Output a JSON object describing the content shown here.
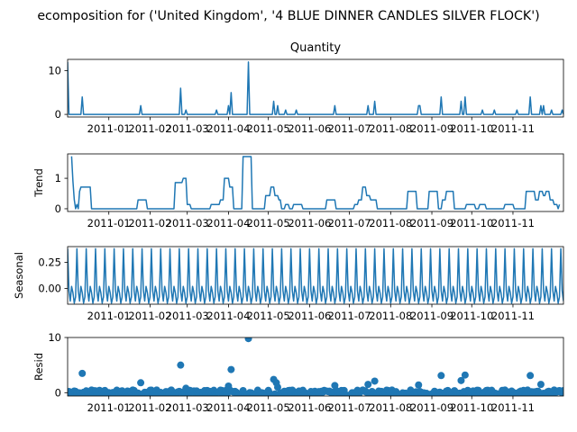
{
  "chart_data": {
    "type": "line",
    "suptitle": "ecomposition for ('United Kingdom', '4 BLUE DINNER CANDLES SILVER FLOCK')",
    "line_color": "#1f77b4",
    "x_domain": [
      "2010-12-01",
      "2011-12-09"
    ],
    "x_tick_values": [
      "2011-01-01",
      "2011-02-01",
      "2011-03-01",
      "2011-04-01",
      "2011-05-01",
      "2011-06-01",
      "2011-07-01",
      "2011-08-01",
      "2011-09-01",
      "2011-10-01",
      "2011-11-01"
    ],
    "x_tick_labels": [
      "2011-01",
      "2011-02",
      "2011-03",
      "2011-04",
      "2011-05",
      "2011-06",
      "2011-07",
      "2011-08",
      "2011-09",
      "2011-10",
      "2011-11"
    ],
    "panels": [
      {
        "id": "observed",
        "kind": "line",
        "title": "Quantity",
        "ylabel": "",
        "ylim": [
          -0.6,
          12.6
        ],
        "y_ticks": [
          0,
          10
        ],
        "y_tick_labels": [
          "0",
          "10"
        ],
        "baseline": 0,
        "spikes": [
          {
            "date": "2010-12-01",
            "value": 12
          },
          {
            "date": "2010-12-12",
            "value": 4
          },
          {
            "date": "2011-01-25",
            "value": 2
          },
          {
            "date": "2011-02-24",
            "value": 6
          },
          {
            "date": "2011-02-28",
            "value": 1
          },
          {
            "date": "2011-03-23",
            "value": 1
          },
          {
            "date": "2011-04-01",
            "value": 2
          },
          {
            "date": "2011-04-03",
            "value": 5
          },
          {
            "date": "2011-04-16",
            "value": 12
          },
          {
            "date": "2011-05-05",
            "value": 3
          },
          {
            "date": "2011-05-08",
            "value": 2
          },
          {
            "date": "2011-05-14",
            "value": 1
          },
          {
            "date": "2011-05-22",
            "value": 1
          },
          {
            "date": "2011-06-20",
            "value": 2
          },
          {
            "date": "2011-07-15",
            "value": 2
          },
          {
            "date": "2011-07-20",
            "value": 3
          },
          {
            "date": "2011-08-22",
            "value": 2
          },
          {
            "date": "2011-08-23",
            "value": 2
          },
          {
            "date": "2011-09-08",
            "value": 4
          },
          {
            "date": "2011-09-23",
            "value": 3
          },
          {
            "date": "2011-09-26",
            "value": 4
          },
          {
            "date": "2011-10-09",
            "value": 1
          },
          {
            "date": "2011-10-18",
            "value": 1
          },
          {
            "date": "2011-11-04",
            "value": 1
          },
          {
            "date": "2011-11-14",
            "value": 4
          },
          {
            "date": "2011-11-22",
            "value": 2
          },
          {
            "date": "2011-11-24",
            "value": 2
          },
          {
            "date": "2011-11-30",
            "value": 1
          },
          {
            "date": "2011-12-08",
            "value": 1
          }
        ]
      },
      {
        "id": "trend",
        "kind": "line",
        "title": "",
        "ylabel": "Trend",
        "ylim": [
          -0.09,
          1.8
        ],
        "y_ticks": [
          0,
          1
        ],
        "y_tick_labels": [
          "0",
          "1"
        ],
        "points": [
          [
            "2010-12-04",
            1.72
          ],
          [
            "2010-12-05",
            0.9
          ],
          [
            "2010-12-06",
            0.3
          ],
          [
            "2010-12-07",
            0.0
          ],
          [
            "2010-12-08",
            0.14
          ],
          [
            "2010-12-09",
            0.0
          ],
          [
            "2010-12-10",
            0.57
          ],
          [
            "2010-12-11",
            0.71
          ],
          [
            "2010-12-18",
            0.71
          ],
          [
            "2010-12-19",
            0.0
          ],
          [
            "2011-01-22",
            0.0
          ],
          [
            "2011-01-23",
            0.29
          ],
          [
            "2011-01-29",
            0.29
          ],
          [
            "2011-01-30",
            0.0
          ],
          [
            "2011-02-19",
            0.0
          ],
          [
            "2011-02-20",
            0.86
          ],
          [
            "2011-02-25",
            0.86
          ],
          [
            "2011-02-26",
            1.0
          ],
          [
            "2011-02-28",
            1.0
          ],
          [
            "2011-03-01",
            0.14
          ],
          [
            "2011-03-03",
            0.14
          ],
          [
            "2011-03-04",
            0.0
          ],
          [
            "2011-03-18",
            0.0
          ],
          [
            "2011-03-19",
            0.14
          ],
          [
            "2011-03-25",
            0.14
          ],
          [
            "2011-03-26",
            0.29
          ],
          [
            "2011-03-28",
            0.29
          ],
          [
            "2011-03-29",
            1.0
          ],
          [
            "2011-04-01",
            1.0
          ],
          [
            "2011-04-02",
            0.71
          ],
          [
            "2011-04-04",
            0.71
          ],
          [
            "2011-04-05",
            0.0
          ],
          [
            "2011-04-11",
            0.0
          ],
          [
            "2011-04-12",
            1.71
          ],
          [
            "2011-04-18",
            1.71
          ],
          [
            "2011-04-19",
            0.0
          ],
          [
            "2011-04-28",
            0.0
          ],
          [
            "2011-04-29",
            0.43
          ],
          [
            "2011-05-02",
            0.43
          ],
          [
            "2011-05-03",
            0.71
          ],
          [
            "2011-05-05",
            0.71
          ],
          [
            "2011-05-06",
            0.43
          ],
          [
            "2011-05-08",
            0.43
          ],
          [
            "2011-05-09",
            0.29
          ],
          [
            "2011-05-10",
            0.29
          ],
          [
            "2011-05-11",
            0.0
          ],
          [
            "2011-05-13",
            0.0
          ],
          [
            "2011-05-14",
            0.14
          ],
          [
            "2011-05-16",
            0.14
          ],
          [
            "2011-05-17",
            0.0
          ],
          [
            "2011-05-19",
            0.0
          ],
          [
            "2011-05-20",
            0.14
          ],
          [
            "2011-05-26",
            0.14
          ],
          [
            "2011-05-27",
            0.0
          ],
          [
            "2011-06-13",
            0.0
          ],
          [
            "2011-06-14",
            0.29
          ],
          [
            "2011-06-20",
            0.29
          ],
          [
            "2011-06-21",
            0.0
          ],
          [
            "2011-07-04",
            0.0
          ],
          [
            "2011-07-05",
            0.14
          ],
          [
            "2011-07-07",
            0.14
          ],
          [
            "2011-07-08",
            0.29
          ],
          [
            "2011-07-10",
            0.29
          ],
          [
            "2011-07-11",
            0.71
          ],
          [
            "2011-07-13",
            0.71
          ],
          [
            "2011-07-14",
            0.43
          ],
          [
            "2011-07-16",
            0.43
          ],
          [
            "2011-07-17",
            0.29
          ],
          [
            "2011-07-21",
            0.29
          ],
          [
            "2011-07-22",
            0.0
          ],
          [
            "2011-08-13",
            0.0
          ],
          [
            "2011-08-14",
            0.57
          ],
          [
            "2011-08-20",
            0.57
          ],
          [
            "2011-08-21",
            0.0
          ],
          [
            "2011-08-29",
            0.0
          ],
          [
            "2011-08-30",
            0.57
          ],
          [
            "2011-09-05",
            0.57
          ],
          [
            "2011-09-06",
            0.0
          ],
          [
            "2011-09-08",
            0.0
          ],
          [
            "2011-09-09",
            0.29
          ],
          [
            "2011-09-11",
            0.29
          ],
          [
            "2011-09-12",
            0.57
          ],
          [
            "2011-09-17",
            0.57
          ],
          [
            "2011-09-18",
            0.0
          ],
          [
            "2011-09-26",
            0.0
          ],
          [
            "2011-09-27",
            0.14
          ],
          [
            "2011-10-03",
            0.14
          ],
          [
            "2011-10-04",
            0.0
          ],
          [
            "2011-10-06",
            0.0
          ],
          [
            "2011-10-07",
            0.14
          ],
          [
            "2011-10-11",
            0.14
          ],
          [
            "2011-10-12",
            0.0
          ],
          [
            "2011-10-25",
            0.0
          ],
          [
            "2011-10-26",
            0.14
          ],
          [
            "2011-11-01",
            0.14
          ],
          [
            "2011-11-02",
            0.0
          ],
          [
            "2011-11-10",
            0.0
          ],
          [
            "2011-11-11",
            0.57
          ],
          [
            "2011-11-17",
            0.57
          ],
          [
            "2011-11-18",
            0.29
          ],
          [
            "2011-11-20",
            0.29
          ],
          [
            "2011-11-21",
            0.57
          ],
          [
            "2011-11-23",
            0.57
          ],
          [
            "2011-11-24",
            0.43
          ],
          [
            "2011-11-25",
            0.43
          ],
          [
            "2011-11-26",
            0.57
          ],
          [
            "2011-11-28",
            0.57
          ],
          [
            "2011-11-29",
            0.29
          ],
          [
            "2011-12-01",
            0.29
          ],
          [
            "2011-12-02",
            0.14
          ],
          [
            "2011-12-04",
            0.14
          ],
          [
            "2011-12-05",
            0.0
          ],
          [
            "2011-12-06",
            0.14
          ]
        ]
      },
      {
        "id": "seasonal",
        "kind": "line",
        "title": "",
        "ylabel": "Seasonal",
        "ylim": [
          -0.15,
          0.4
        ],
        "y_ticks": [
          0.0,
          0.25
        ],
        "y_tick_labels": [
          "0.00",
          "0.25"
        ],
        "period": 7,
        "season_pattern": [
          0.38,
          -0.02,
          -0.12,
          0.02,
          -0.04,
          -0.14,
          -0.08
        ]
      },
      {
        "id": "resid",
        "kind": "scatter",
        "title": "",
        "ylabel": "Resid",
        "ylim": [
          -0.6,
          10.0
        ],
        "y_ticks": [
          0,
          10
        ],
        "y_tick_labels": [
          "0",
          "10"
        ],
        "noise_band": [
          -0.6,
          0.5
        ],
        "outliers": [
          [
            "2010-12-12",
            3.5
          ],
          [
            "2011-01-25",
            1.8
          ],
          [
            "2011-02-24",
            5.0
          ],
          [
            "2011-02-28",
            0.8
          ],
          [
            "2011-04-03",
            4.2
          ],
          [
            "2011-04-01",
            1.2
          ],
          [
            "2011-04-16",
            9.8
          ],
          [
            "2011-04-08",
            -0.7
          ],
          [
            "2011-05-05",
            2.4
          ],
          [
            "2011-05-07",
            1.8
          ],
          [
            "2011-05-08",
            1.0
          ],
          [
            "2011-06-20",
            1.3
          ],
          [
            "2011-07-15",
            1.5
          ],
          [
            "2011-07-20",
            2.1
          ],
          [
            "2011-08-22",
            1.4
          ],
          [
            "2011-09-08",
            3.1
          ],
          [
            "2011-09-23",
            2.2
          ],
          [
            "2011-09-26",
            3.2
          ],
          [
            "2011-11-14",
            3.1
          ],
          [
            "2011-11-22",
            1.5
          ]
        ]
      }
    ]
  }
}
